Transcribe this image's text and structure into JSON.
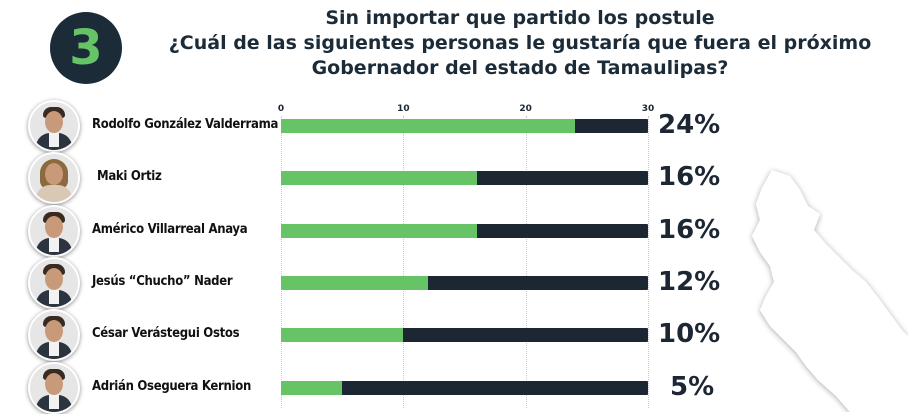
{
  "badge": {
    "number": "3"
  },
  "title": {
    "line1": "Sin importar que partido los postule",
    "line2": "¿Cuál de las siguientes personas le gustaría que fuera el próximo",
    "line3_bold1": "Gobernador",
    "line3_mid": " del estado de ",
    "line3_bold2": "Tamaulipas",
    "line3_end": "?"
  },
  "chart_data": {
    "type": "bar",
    "orientation": "horizontal",
    "categories": [
      "Rodolfo González Valderrama",
      "Maki Ortiz",
      "Américo Villarreal Anaya",
      "Jesús “Chucho” Nader",
      "César Verástegui Ostos",
      "Adrián Oseguera Kernion"
    ],
    "values": [
      24,
      16,
      16,
      12,
      10,
      5
    ],
    "value_labels": [
      "24%",
      "16%",
      "16%",
      "12%",
      "10%",
      "5%"
    ],
    "xlim": [
      0,
      30
    ],
    "xticks": [
      "0",
      "10",
      "20",
      "30"
    ],
    "grid": true,
    "colors": {
      "fill": "#66c466",
      "track": "#1c2733"
    }
  },
  "avatars": [
    "male",
    "female",
    "male",
    "male",
    "male",
    "male"
  ]
}
